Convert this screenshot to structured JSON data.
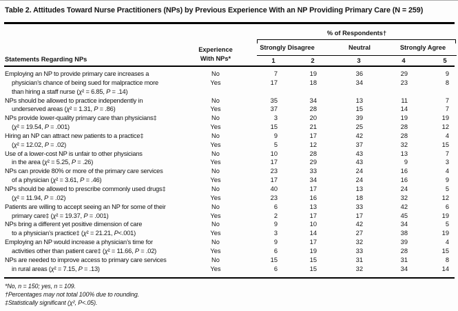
{
  "title": "Table 2. Attitudes Toward Nurse Practitioners (NPs) by Previous Experience With an NP Providing Primary Care (N = 259)",
  "header": {
    "statements_label": "Statements Regarding NPs",
    "experience_label_line1": "Experience",
    "experience_label_line2": "With NPs*",
    "respondents_label": "% of Respondents†",
    "scale_groups": [
      "Strongly Disagree",
      "Neutral",
      "Strongly Agree"
    ],
    "scale_numbers": [
      "1",
      "2",
      "3",
      "4",
      "5"
    ]
  },
  "rows": [
    {
      "statement_lines": [
        "Employing an NP to provide primary care increases a",
        "physician’s chance of being sued for malpractice more",
        "than hiring a staff nurse (χ² = 6.85, P = .14)"
      ],
      "data": [
        {
          "experience": "No",
          "values": [
            7,
            19,
            36,
            29,
            9
          ]
        },
        {
          "experience": "Yes",
          "values": [
            17,
            18,
            34,
            23,
            8
          ]
        }
      ]
    },
    {
      "statement_lines": [
        "NPs should be allowed to practice independently in",
        "underserved areas (χ² = 1.31, P = .86)"
      ],
      "data": [
        {
          "experience": "No",
          "values": [
            35,
            34,
            13,
            11,
            7
          ]
        },
        {
          "experience": "Yes",
          "values": [
            37,
            28,
            15,
            14,
            7
          ]
        }
      ]
    },
    {
      "statement_lines": [
        "NPs provide lower-quality primary care than physicians‡",
        "(χ² = 19.54, P = .001)"
      ],
      "data": [
        {
          "experience": "No",
          "values": [
            3,
            20,
            39,
            19,
            19
          ]
        },
        {
          "experience": "Yes",
          "values": [
            15,
            21,
            25,
            28,
            12
          ]
        }
      ]
    },
    {
      "statement_lines": [
        "Hiring an NP can attract new patients to a practice‡",
        "(χ² = 12.02, P = .02)"
      ],
      "data": [
        {
          "experience": "No",
          "values": [
            9,
            17,
            42,
            28,
            4
          ]
        },
        {
          "experience": "Yes",
          "values": [
            5,
            12,
            37,
            32,
            15
          ]
        }
      ]
    },
    {
      "statement_lines": [
        "Use of a lower-cost NP is unfair to other physicians",
        "in the area (χ² = 5.25, P = .26)"
      ],
      "data": [
        {
          "experience": "No",
          "values": [
            10,
            28,
            43,
            13,
            7
          ]
        },
        {
          "experience": "Yes",
          "values": [
            17,
            29,
            43,
            9,
            3
          ]
        }
      ]
    },
    {
      "statement_lines": [
        "NPs can provide 80% or more of the primary care services",
        "of a physician (χ² = 3.61, P = .46)"
      ],
      "data": [
        {
          "experience": "No",
          "values": [
            23,
            33,
            24,
            16,
            4
          ]
        },
        {
          "experience": "Yes",
          "values": [
            17,
            34,
            24,
            16,
            9
          ]
        }
      ]
    },
    {
      "statement_lines": [
        "NPs should be allowed to prescribe commonly used drugs‡",
        "(χ² = 11.94, P = .02)"
      ],
      "data": [
        {
          "experience": "No",
          "values": [
            40,
            17,
            13,
            24,
            5
          ]
        },
        {
          "experience": "Yes",
          "values": [
            23,
            16,
            18,
            32,
            12
          ]
        }
      ]
    },
    {
      "statement_lines": [
        "Patients are willing to accept seeing an NP for some of their",
        "primary care‡ (χ² = 19.37, P = .001)"
      ],
      "data": [
        {
          "experience": "No",
          "values": [
            6,
            13,
            33,
            42,
            6
          ]
        },
        {
          "experience": "Yes",
          "values": [
            2,
            17,
            17,
            45,
            19
          ]
        }
      ]
    },
    {
      "statement_lines": [
        "NPs bring a different yet positive dimension of care",
        "to a physician’s practice‡ (χ² = 21.21, P<.001)"
      ],
      "data": [
        {
          "experience": "No",
          "values": [
            9,
            10,
            42,
            34,
            5
          ]
        },
        {
          "experience": "Yes",
          "values": [
            3,
            14,
            27,
            38,
            19
          ]
        }
      ]
    },
    {
      "statement_lines": [
        "Employing an NP would increase a physician’s time for",
        "activities other than patient care‡ (χ² = 11.66, P = .02)"
      ],
      "data": [
        {
          "experience": "No",
          "values": [
            9,
            17,
            32,
            39,
            4
          ]
        },
        {
          "experience": "Yes",
          "values": [
            6,
            19,
            33,
            28,
            15
          ]
        }
      ]
    },
    {
      "statement_lines": [
        "NPs are needed to improve access to primary care services",
        "in rural areas (χ² = 7.15, P = .13)"
      ],
      "data": [
        {
          "experience": "No",
          "values": [
            15,
            15,
            31,
            31,
            8
          ]
        },
        {
          "experience": "Yes",
          "values": [
            6,
            15,
            32,
            34,
            14
          ]
        }
      ]
    }
  ],
  "footnotes": [
    "*No, n = 150; yes, n = 109.",
    "†Percentages may not total 100% due to rounding.",
    "‡Statistically significant (χ², P<.05)."
  ]
}
